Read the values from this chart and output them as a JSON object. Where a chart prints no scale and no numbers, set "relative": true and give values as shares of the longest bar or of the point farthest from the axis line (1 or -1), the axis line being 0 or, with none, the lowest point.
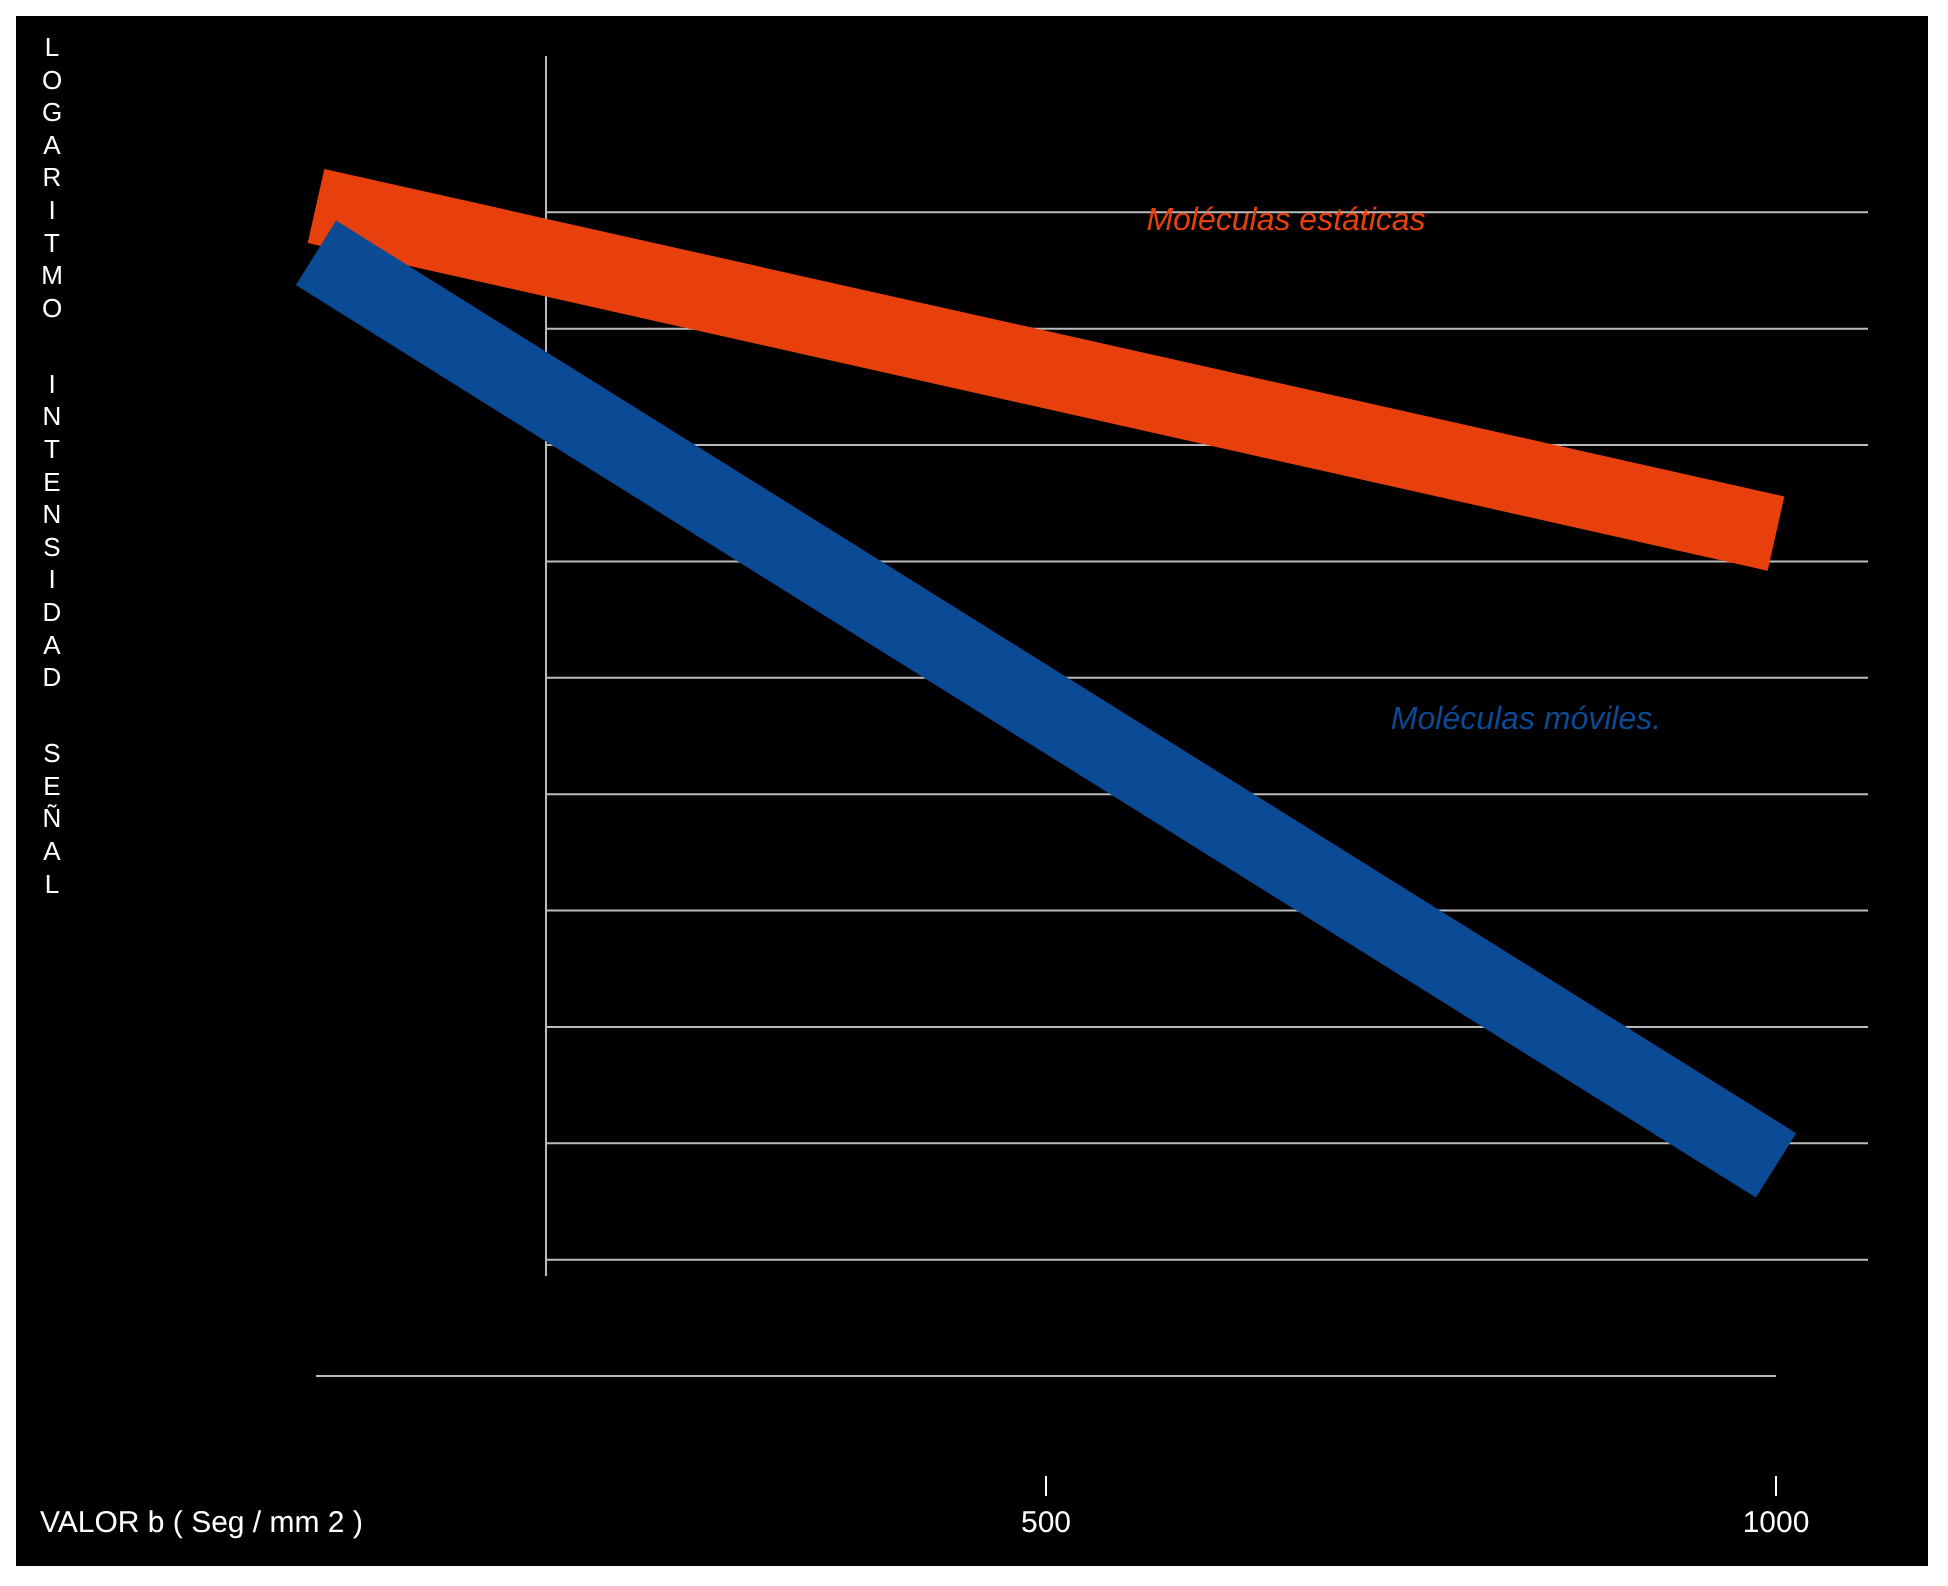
{
  "chart_data": {
    "type": "line",
    "xlabel": "VALOR b ( Seg / mm 2 )",
    "ylabel": "LOGARITMO INTENSIDAD SEÑAL",
    "relative": true,
    "x": [
      0,
      1000
    ],
    "xlim": [
      0,
      1000
    ],
    "xticks": [
      500,
      1000
    ],
    "grid": "y",
    "marker": "none",
    "line_style": "solid",
    "series": [
      {
        "name": "Moléculas estáticas",
        "color": "#e8400c",
        "values": [
          1,
          0.72
        ]
      },
      {
        "name": "Moléculas móviles.",
        "color": "#0b4a94",
        "values": [
          0.96,
          0.18
        ]
      }
    ]
  }
}
